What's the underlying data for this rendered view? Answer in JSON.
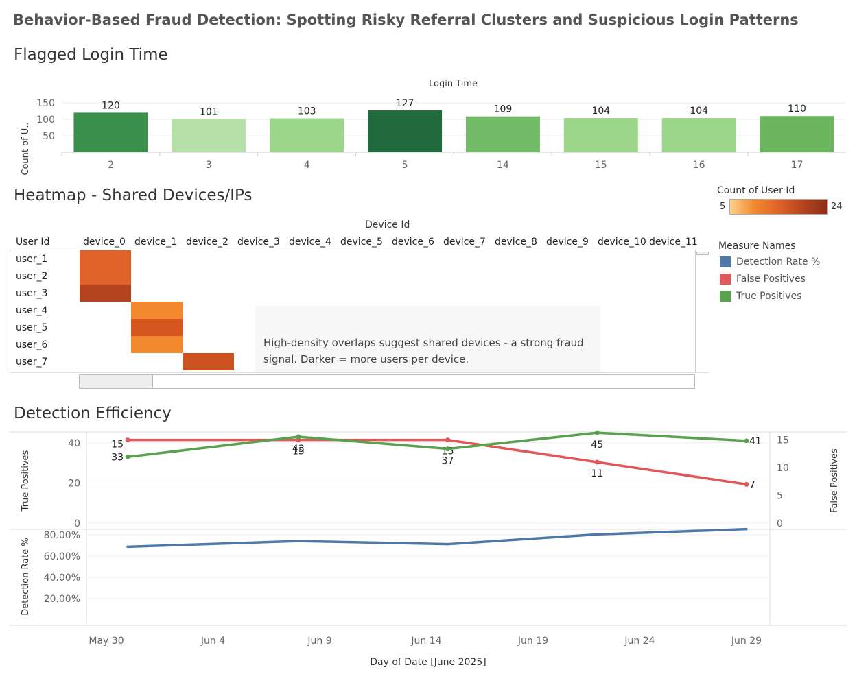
{
  "page": {
    "title": "Behavior-Based Fraud Detection: Spotting Risky Referral Clusters and Suspicious Login Patterns"
  },
  "login_section": {
    "title": "Flagged Login Time"
  },
  "heatmap_section": {
    "title": "Heatmap - Shared Devices/IPs",
    "note": "High-density overlaps suggest shared devices - a strong fraud signal. Darker = more users per device."
  },
  "efficiency_section": {
    "title": "Detection Efficiency"
  },
  "color_legend": {
    "title": "Count of User Id",
    "min": "5",
    "max": "24"
  },
  "measure_legend": {
    "title": "Measure Names",
    "items": [
      {
        "label": "Detection Rate %",
        "color": "#4e79a7"
      },
      {
        "label": "False Positives",
        "color": "#e15759"
      },
      {
        "label": "True Positives",
        "color": "#59a14f"
      }
    ]
  },
  "chart_data": [
    {
      "type": "bar",
      "title": "Login Time",
      "xlabel": "",
      "ylabel": "Count of U..",
      "categories": [
        "2",
        "3",
        "4",
        "5",
        "14",
        "15",
        "16",
        "17"
      ],
      "values": [
        120,
        101,
        103,
        127,
        109,
        104,
        104,
        110
      ],
      "yticks": [
        50,
        100,
        150
      ],
      "ylim": [
        0,
        150
      ],
      "colors": [
        "#3a8f4a",
        "#b5e0a8",
        "#9cd68a",
        "#216a3d",
        "#72ba66",
        "#9cd68a",
        "#9cd68a",
        "#6cb55f"
      ]
    },
    {
      "type": "heatmap",
      "title": "Device Id",
      "ylabel": "User Id",
      "columns": [
        "device_0",
        "device_1",
        "device_2",
        "device_3",
        "device_4",
        "device_5",
        "device_6",
        "device_7",
        "device_8",
        "device_9",
        "device_10",
        "device_11"
      ],
      "rows": [
        "user_1",
        "user_2",
        "user_3",
        "user_4",
        "user_5",
        "user_6",
        "user_7"
      ],
      "cells": [
        {
          "row": "user_1",
          "col": "device_0",
          "color": "#e06228"
        },
        {
          "row": "user_2",
          "col": "device_0",
          "color": "#e06228"
        },
        {
          "row": "user_3",
          "col": "device_0",
          "color": "#b3441f"
        },
        {
          "row": "user_4",
          "col": "device_1",
          "color": "#f3892f"
        },
        {
          "row": "user_5",
          "col": "device_1",
          "color": "#d5561f"
        },
        {
          "row": "user_6",
          "col": "device_1",
          "color": "#f3892f"
        },
        {
          "row": "user_7",
          "col": "device_2",
          "color": "#cd5222"
        }
      ]
    },
    {
      "type": "line",
      "xlabel": "Day of Date [June 2025]",
      "x": [
        "2025-05-31",
        "2025-06-08",
        "2025-06-15",
        "2025-06-22",
        "2025-06-29"
      ],
      "xticks": [
        "May 30",
        "Jun 4",
        "Jun 9",
        "Jun 14",
        "Jun 19",
        "Jun 24",
        "Jun 29"
      ],
      "series": [
        {
          "name": "True Positives",
          "values": [
            33,
            43,
            37,
            45,
            41
          ],
          "axis": "left",
          "ylabel": "True Positives",
          "ylim": [
            0,
            45
          ],
          "yticks": [
            0,
            20,
            40
          ],
          "color": "#59a14f"
        },
        {
          "name": "False Positives",
          "values": [
            15,
            15,
            15,
            11,
            7
          ],
          "axis": "right",
          "ylabel": "False Positives",
          "ylim": [
            0,
            15
          ],
          "yticks": [
            0,
            5,
            10,
            15
          ],
          "color": "#e15759"
        }
      ]
    },
    {
      "type": "line",
      "xlabel": "Day of Date [June 2025]",
      "ylabel": "Detection Rate %",
      "x": [
        "2025-05-31",
        "2025-06-08",
        "2025-06-15",
        "2025-06-22",
        "2025-06-29"
      ],
      "series": [
        {
          "name": "Detection Rate %",
          "values": [
            68.8,
            74.1,
            71.2,
            80.4,
            85.4
          ],
          "color": "#4e79a7"
        }
      ],
      "yticks": [
        "20.00%",
        "40.00%",
        "60.00%",
        "80.00%"
      ],
      "ylim": [
        0,
        90
      ]
    }
  ]
}
